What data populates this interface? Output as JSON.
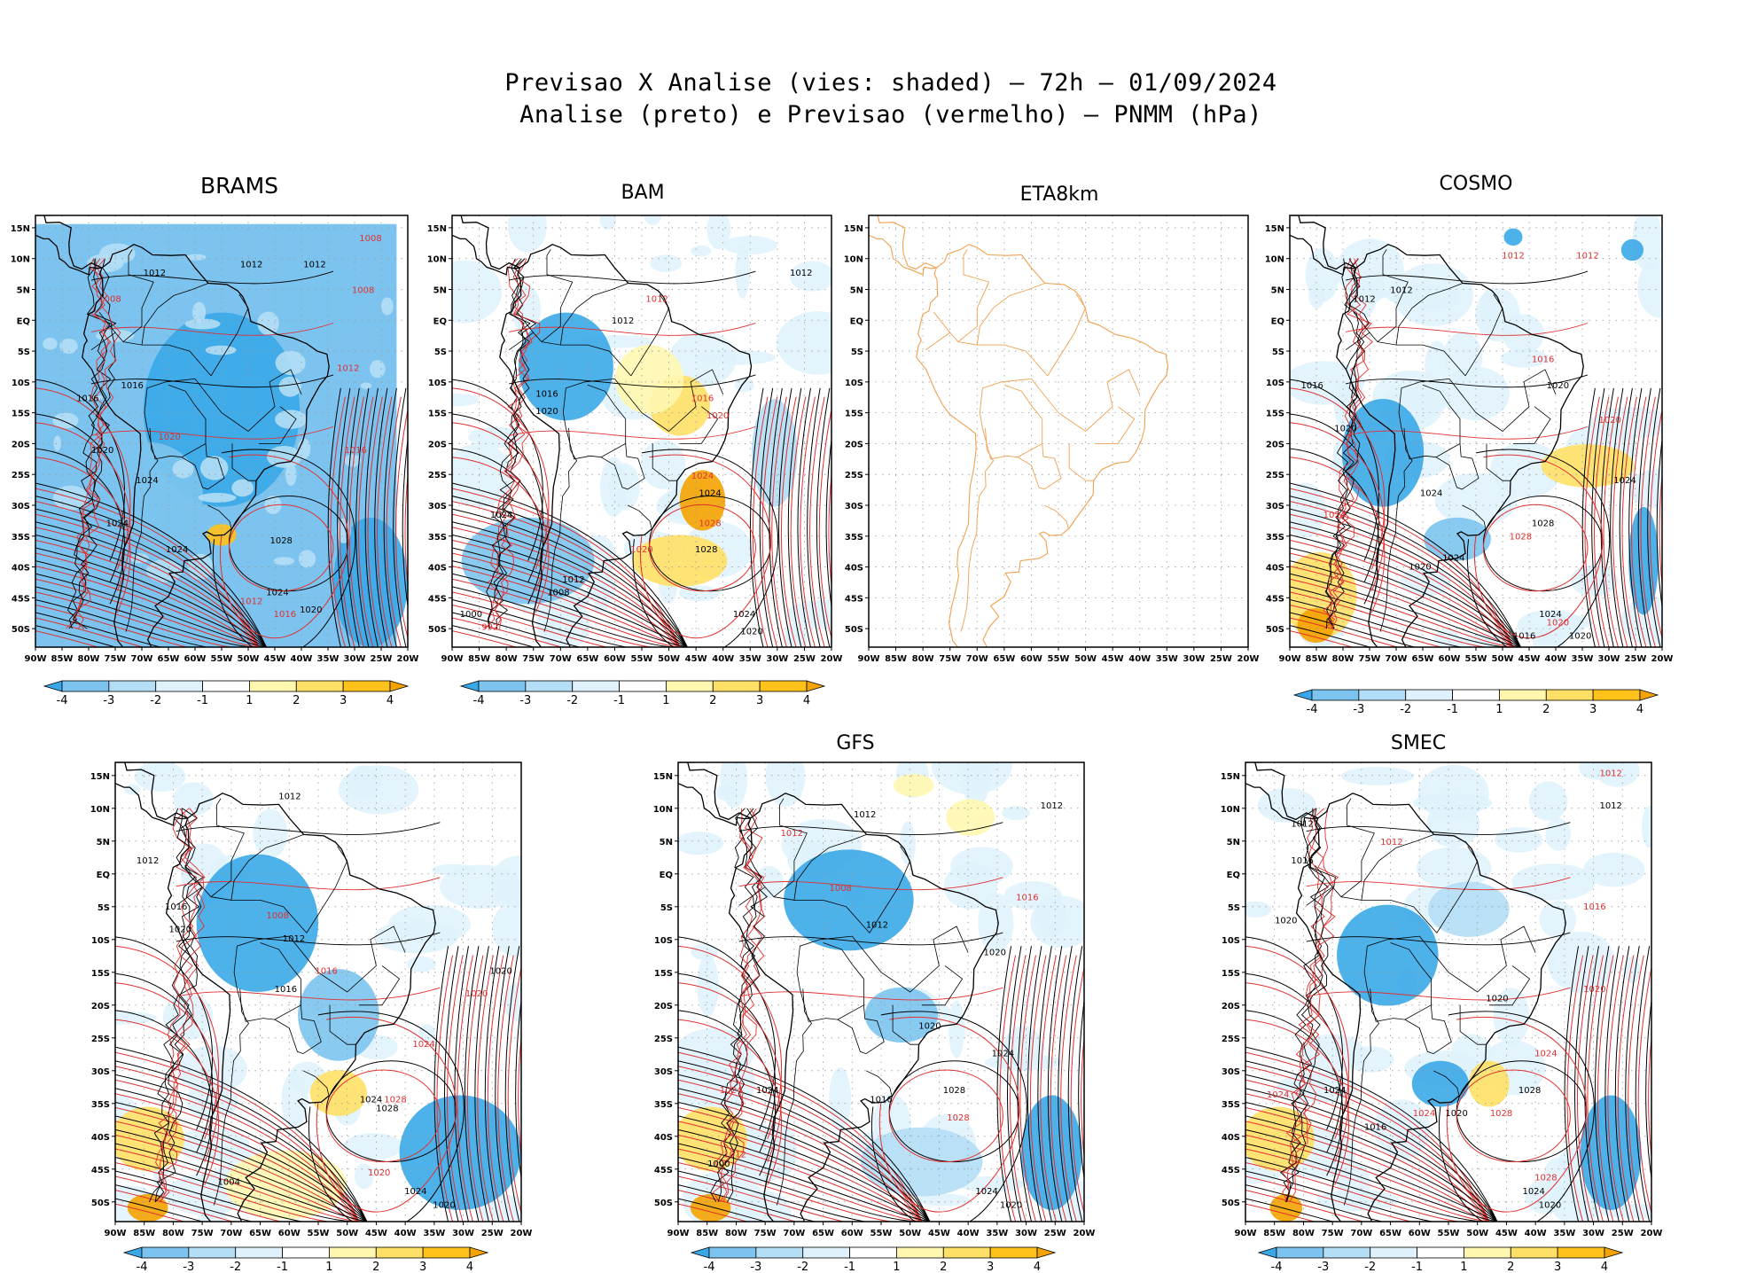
{
  "title": {
    "line1": "Previsao X Analise (vies: shaded) — 72h — 01/09/2024",
    "line2": "Analise (preto) e Previsao (vermelho) — PNMM (hPa)"
  },
  "axes": {
    "lon_labels": [
      "90W",
      "85W",
      "80W",
      "75W",
      "70W",
      "65W",
      "60W",
      "55W",
      "50W",
      "45W",
      "40W",
      "35W",
      "30W",
      "25W",
      "20W"
    ],
    "lat_labels": [
      "15N",
      "10N",
      "5N",
      "EQ",
      "5S",
      "10S",
      "15S",
      "20S",
      "25S",
      "30S",
      "35S",
      "40S",
      "45S",
      "50S"
    ]
  },
  "colorbar": {
    "labels": [
      "-4",
      "-3",
      "-2",
      "-1",
      "1",
      "2",
      "3",
      "4"
    ],
    "colors": [
      "#3aa8e8",
      "#7cc4ef",
      "#b4def5",
      "#dff2fb",
      "#ffffff",
      "#fff7b0",
      "#ffe066",
      "#ffc21a",
      "#f5a300"
    ]
  },
  "colors": {
    "analysis_isobar": "#000000",
    "forecast_isobar": "#e03030",
    "coastline_eta": "#f0a050"
  },
  "panels": [
    {
      "id": "brams",
      "title": "BRAMS",
      "labels": [
        [
          "1012",
          0.75,
          0.12,
          "k"
        ],
        [
          "1008",
          0.9,
          0.06,
          "r"
        ],
        [
          "1008",
          0.88,
          0.18,
          "r"
        ],
        [
          "1008",
          0.2,
          0.2,
          "r"
        ],
        [
          "1012",
          0.32,
          0.14,
          "k"
        ],
        [
          "1012",
          0.58,
          0.12,
          "k"
        ],
        [
          "1012",
          0.84,
          0.36,
          "r"
        ],
        [
          "1016",
          0.14,
          0.43,
          "k"
        ],
        [
          "1016",
          0.26,
          0.4,
          "k"
        ],
        [
          "1020",
          0.18,
          0.55,
          "k"
        ],
        [
          "1020",
          0.36,
          0.52,
          "r"
        ],
        [
          "1024",
          0.3,
          0.62,
          "k"
        ],
        [
          "1024",
          0.22,
          0.72,
          "k"
        ],
        [
          "1024",
          0.38,
          0.78,
          "k"
        ],
        [
          "1028",
          0.66,
          0.76,
          "k"
        ],
        [
          "1016",
          0.86,
          0.55,
          "r"
        ],
        [
          "1016",
          0.67,
          0.93,
          "r"
        ],
        [
          "1024",
          0.65,
          0.88,
          "k"
        ],
        [
          "1020",
          0.74,
          0.92,
          "k"
        ],
        [
          "1012",
          0.58,
          0.9,
          "r"
        ]
      ],
      "biasPatches": [
        [
          0.5,
          0.45,
          0.42,
          0.45,
          "#3aa8e8"
        ],
        [
          0.3,
          0.65,
          0.3,
          0.25,
          "#7cc4ef"
        ],
        [
          0.9,
          0.85,
          0.2,
          0.3,
          "#3aa8e8"
        ],
        [
          0.75,
          0.2,
          0.25,
          0.2,
          "#7cc4ef"
        ],
        [
          0.5,
          0.74,
          0.08,
          0.05,
          "#ffc21a"
        ]
      ]
    },
    {
      "id": "bam",
      "title": "BAM",
      "labels": [
        [
          "1012",
          0.92,
          0.14,
          "k"
        ],
        [
          "1012",
          0.54,
          0.2,
          "r"
        ],
        [
          "1012",
          0.45,
          0.25,
          "k"
        ],
        [
          "1016",
          0.66,
          0.43,
          "r"
        ],
        [
          "1016",
          0.25,
          0.42,
          "k"
        ],
        [
          "1020",
          0.25,
          0.46,
          "k"
        ],
        [
          "1020",
          0.7,
          0.47,
          "r"
        ],
        [
          "1024",
          0.13,
          0.7,
          "k"
        ],
        [
          "1024",
          0.68,
          0.65,
          "k"
        ],
        [
          "1024",
          0.66,
          0.61,
          "r"
        ],
        [
          "1028",
          0.68,
          0.72,
          "r"
        ],
        [
          "1028",
          0.67,
          0.78,
          "k"
        ],
        [
          "1020",
          0.5,
          0.78,
          "r"
        ],
        [
          "1012",
          0.32,
          0.85,
          "k"
        ],
        [
          "1008",
          0.28,
          0.88,
          "k"
        ],
        [
          "992",
          0.1,
          0.96,
          "r"
        ],
        [
          "1000",
          0.05,
          0.93,
          "k"
        ],
        [
          "1024",
          0.77,
          0.93,
          "k"
        ],
        [
          "1020",
          0.79,
          0.97,
          "k"
        ]
      ],
      "biasPatches": [
        [
          0.6,
          0.44,
          0.16,
          0.14,
          "#ffe066"
        ],
        [
          0.66,
          0.66,
          0.12,
          0.14,
          "#f5a300"
        ],
        [
          0.52,
          0.38,
          0.18,
          0.16,
          "#fff7b0"
        ],
        [
          0.3,
          0.35,
          0.25,
          0.25,
          "#3aa8e8"
        ],
        [
          0.2,
          0.8,
          0.35,
          0.2,
          "#7cc4ef"
        ],
        [
          0.6,
          0.8,
          0.25,
          0.12,
          "#ffe066"
        ],
        [
          0.85,
          0.55,
          0.12,
          0.25,
          "#b4def5"
        ]
      ]
    },
    {
      "id": "eta8km",
      "title": "ETA8km",
      "labels": [],
      "biasPatches": []
    },
    {
      "id": "cosmo",
      "title": "COSMO",
      "labels": [
        [
          "1012",
          0.6,
          0.1,
          "r"
        ],
        [
          "1012",
          0.8,
          0.1,
          "r"
        ],
        [
          "1012",
          0.2,
          0.2,
          "k"
        ],
        [
          "1012",
          0.3,
          0.18,
          "k"
        ],
        [
          "1016",
          0.06,
          0.4,
          "k"
        ],
        [
          "1016",
          0.68,
          0.34,
          "r"
        ],
        [
          "1020",
          0.15,
          0.5,
          "k"
        ],
        [
          "1020",
          0.72,
          0.4,
          "k"
        ],
        [
          "1020",
          0.86,
          0.48,
          "r"
        ],
        [
          "1024",
          0.9,
          0.62,
          "k"
        ],
        [
          "1024",
          0.38,
          0.65,
          "k"
        ],
        [
          "1024",
          0.12,
          0.7,
          "r"
        ],
        [
          "1028",
          0.68,
          0.72,
          "k"
        ],
        [
          "1028",
          0.62,
          0.75,
          "r"
        ],
        [
          "1024",
          0.44,
          0.8,
          "k"
        ],
        [
          "1020",
          0.35,
          0.82,
          "k"
        ],
        [
          "1020",
          0.72,
          0.95,
          "r"
        ],
        [
          "1024",
          0.7,
          0.93,
          "k"
        ],
        [
          "1016",
          0.63,
          0.98,
          "k"
        ],
        [
          "1020",
          0.78,
          0.98,
          "k"
        ]
      ],
      "biasPatches": [
        [
          0.25,
          0.55,
          0.22,
          0.25,
          "#3aa8e8"
        ],
        [
          0.45,
          0.75,
          0.18,
          0.1,
          "#7cc4ef"
        ],
        [
          0.08,
          0.88,
          0.2,
          0.2,
          "#ffe066"
        ],
        [
          0.07,
          0.95,
          0.1,
          0.08,
          "#f5a300"
        ],
        [
          0.8,
          0.58,
          0.25,
          0.1,
          "#ffe066"
        ],
        [
          0.95,
          0.8,
          0.08,
          0.25,
          "#3aa8e8"
        ],
        [
          0.6,
          0.05,
          0.05,
          0.04,
          "#3aa8e8"
        ],
        [
          0.92,
          0.08,
          0.06,
          0.05,
          "#3aa8e8"
        ]
      ]
    },
    {
      "id": "p5",
      "title": "",
      "labels": [
        [
          "1012",
          0.43,
          0.08,
          "k"
        ],
        [
          "1012",
          0.08,
          0.22,
          "k"
        ],
        [
          "1016",
          0.15,
          0.32,
          "k"
        ],
        [
          "1020",
          0.16,
          0.37,
          "k"
        ],
        [
          "1008",
          0.4,
          0.34,
          "r"
        ],
        [
          "1012",
          0.44,
          0.39,
          "k"
        ],
        [
          "1016",
          0.52,
          0.46,
          "r"
        ],
        [
          "1016",
          0.42,
          0.5,
          "k"
        ],
        [
          "1020",
          0.95,
          0.46,
          "k"
        ],
        [
          "1020",
          0.89,
          0.51,
          "r"
        ],
        [
          "1024",
          0.76,
          0.62,
          "r"
        ],
        [
          "1024",
          0.63,
          0.74,
          "k"
        ],
        [
          "1028",
          0.67,
          0.76,
          "k"
        ],
        [
          "1028",
          0.69,
          0.74,
          "r"
        ],
        [
          "1020",
          0.65,
          0.9,
          "r"
        ],
        [
          "1024",
          0.74,
          0.94,
          "k"
        ],
        [
          "1020",
          0.81,
          0.97,
          "k"
        ],
        [
          "1004",
          0.28,
          0.92,
          "k"
        ]
      ],
      "biasPatches": [
        [
          0.35,
          0.35,
          0.3,
          0.3,
          "#3aa8e8"
        ],
        [
          0.55,
          0.72,
          0.14,
          0.1,
          "#ffe066"
        ],
        [
          0.08,
          0.82,
          0.18,
          0.14,
          "#ffe066"
        ],
        [
          0.08,
          0.97,
          0.1,
          0.06,
          "#f5a300"
        ],
        [
          0.42,
          0.92,
          0.3,
          0.15,
          "#fff7b0"
        ],
        [
          0.85,
          0.85,
          0.3,
          0.25,
          "#3aa8e8"
        ],
        [
          0.55,
          0.55,
          0.2,
          0.2,
          "#7cc4ef"
        ]
      ]
    },
    {
      "id": "gfs",
      "title": "GFS",
      "labels": [
        [
          "1012",
          0.46,
          0.12,
          "k"
        ],
        [
          "1012",
          0.92,
          0.1,
          "k"
        ],
        [
          "1012",
          0.28,
          0.16,
          "r"
        ],
        [
          "1008",
          0.4,
          0.28,
          "r"
        ],
        [
          "1012",
          0.49,
          0.36,
          "k"
        ],
        [
          "1016",
          0.86,
          0.3,
          "r"
        ],
        [
          "1020",
          0.78,
          0.42,
          "k"
        ],
        [
          "1020",
          0.62,
          0.58,
          "k"
        ],
        [
          "1024",
          0.8,
          0.64,
          "k"
        ],
        [
          "1028",
          0.68,
          0.72,
          "k"
        ],
        [
          "1028",
          0.69,
          0.78,
          "r"
        ],
        [
          "1016",
          0.5,
          0.74,
          "k"
        ],
        [
          "1024",
          0.22,
          0.72,
          "k"
        ],
        [
          "1024",
          0.13,
          0.72,
          "r"
        ],
        [
          "1000",
          0.1,
          0.88,
          "k"
        ],
        [
          "1024",
          0.76,
          0.94,
          "k"
        ],
        [
          "1020",
          0.82,
          0.97,
          "k"
        ],
        [
          "1012",
          0.14,
          0.86,
          "r"
        ]
      ],
      "biasPatches": [
        [
          0.42,
          0.3,
          0.32,
          0.22,
          "#3aa8e8"
        ],
        [
          0.55,
          0.55,
          0.18,
          0.12,
          "#7cc4ef"
        ],
        [
          0.08,
          0.82,
          0.18,
          0.14,
          "#ffe066"
        ],
        [
          0.08,
          0.97,
          0.1,
          0.06,
          "#f5a300"
        ],
        [
          0.58,
          0.05,
          0.1,
          0.05,
          "#fff7b0"
        ],
        [
          0.72,
          0.12,
          0.12,
          0.08,
          "#fff7b0"
        ],
        [
          0.92,
          0.85,
          0.15,
          0.25,
          "#3aa8e8"
        ],
        [
          0.6,
          0.87,
          0.3,
          0.15,
          "#b4def5"
        ]
      ]
    },
    {
      "id": "smec",
      "title": "SMEC",
      "labels": [
        [
          "1012",
          0.9,
          0.1,
          "k"
        ],
        [
          "1012",
          0.9,
          0.03,
          "r"
        ],
        [
          "1012",
          0.14,
          0.14,
          "k"
        ],
        [
          "1016",
          0.14,
          0.22,
          "k"
        ],
        [
          "1012",
          0.36,
          0.18,
          "r"
        ],
        [
          "1020",
          0.1,
          0.35,
          "k"
        ],
        [
          "1016",
          0.86,
          0.32,
          "r"
        ],
        [
          "1020",
          0.86,
          0.5,
          "r"
        ],
        [
          "1020",
          0.62,
          0.52,
          "k"
        ],
        [
          "1024",
          0.74,
          0.64,
          "r"
        ],
        [
          "1028",
          0.7,
          0.72,
          "k"
        ],
        [
          "1028",
          0.63,
          0.77,
          "r"
        ],
        [
          "1020",
          0.52,
          0.77,
          "k"
        ],
        [
          "1024",
          0.44,
          0.77,
          "r"
        ],
        [
          "1024",
          0.22,
          0.72,
          "k"
        ],
        [
          "1024",
          0.08,
          0.73,
          "r"
        ],
        [
          "1016",
          0.32,
          0.8,
          "k"
        ],
        [
          "1024",
          0.71,
          0.94,
          "k"
        ],
        [
          "1020",
          0.75,
          0.97,
          "k"
        ],
        [
          "1028",
          0.74,
          0.91,
          "r"
        ]
      ],
      "biasPatches": [
        [
          0.35,
          0.42,
          0.25,
          0.22,
          "#3aa8e8"
        ],
        [
          0.48,
          0.7,
          0.14,
          0.1,
          "#3aa8e8"
        ],
        [
          0.6,
          0.7,
          0.1,
          0.1,
          "#ffe066"
        ],
        [
          0.08,
          0.82,
          0.18,
          0.14,
          "#ffe066"
        ],
        [
          0.1,
          0.97,
          0.08,
          0.06,
          "#f5a300"
        ],
        [
          0.9,
          0.85,
          0.15,
          0.25,
          "#3aa8e8"
        ],
        [
          0.55,
          0.32,
          0.2,
          0.12,
          "#b4def5"
        ]
      ]
    }
  ]
}
